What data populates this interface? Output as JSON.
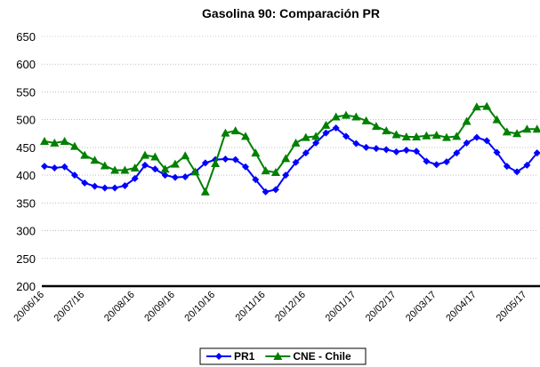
{
  "chart_data": {
    "type": "line",
    "title": "Gasolina 90: Comparación PR",
    "categories": [
      "20/06/16",
      null,
      null,
      null,
      "20/07/16",
      null,
      null,
      null,
      null,
      "20/08/16",
      null,
      null,
      null,
      "20/09/16",
      null,
      null,
      null,
      "20/10/16",
      null,
      null,
      null,
      null,
      "20/11/16",
      null,
      null,
      null,
      "20/12/16",
      null,
      null,
      null,
      null,
      "20/01/17",
      null,
      null,
      null,
      "20/02/17",
      null,
      null,
      null,
      "20/03/17",
      null,
      null,
      null,
      "20/04/17",
      null,
      null,
      null,
      null,
      "20/05/17",
      null
    ],
    "series": [
      {
        "name": "PR1",
        "color": "#0000ff",
        "marker": "diamond",
        "values": [
          416,
          413,
          415,
          400,
          386,
          380,
          377,
          377,
          381,
          394,
          418,
          411,
          400,
          396,
          397,
          406,
          422,
          428,
          429,
          428,
          415,
          392,
          370,
          374,
          400,
          423,
          440,
          458,
          476,
          485,
          470,
          457,
          450,
          448,
          446,
          442,
          445,
          443,
          425,
          419,
          424,
          440,
          458,
          468,
          462,
          441,
          416,
          406,
          418,
          440
        ]
      },
      {
        "name": "CNE - Chile",
        "color": "#008000",
        "marker": "triangle",
        "values": [
          461,
          458,
          461,
          452,
          436,
          427,
          417,
          409,
          409,
          413,
          436,
          433,
          411,
          420,
          435,
          406,
          370,
          421,
          476,
          480,
          470,
          440,
          408,
          405,
          430,
          458,
          468,
          470,
          490,
          505,
          508,
          505,
          498,
          488,
          480,
          473,
          469,
          469,
          471,
          472,
          468,
          470,
          497,
          523,
          524,
          500,
          478,
          475,
          483,
          483
        ]
      }
    ],
    "ylim": [
      200,
      650
    ],
    "yticks": [
      200,
      250,
      300,
      350,
      400,
      450,
      500,
      550,
      600,
      650
    ],
    "grid": true,
    "legend": "bottom"
  }
}
